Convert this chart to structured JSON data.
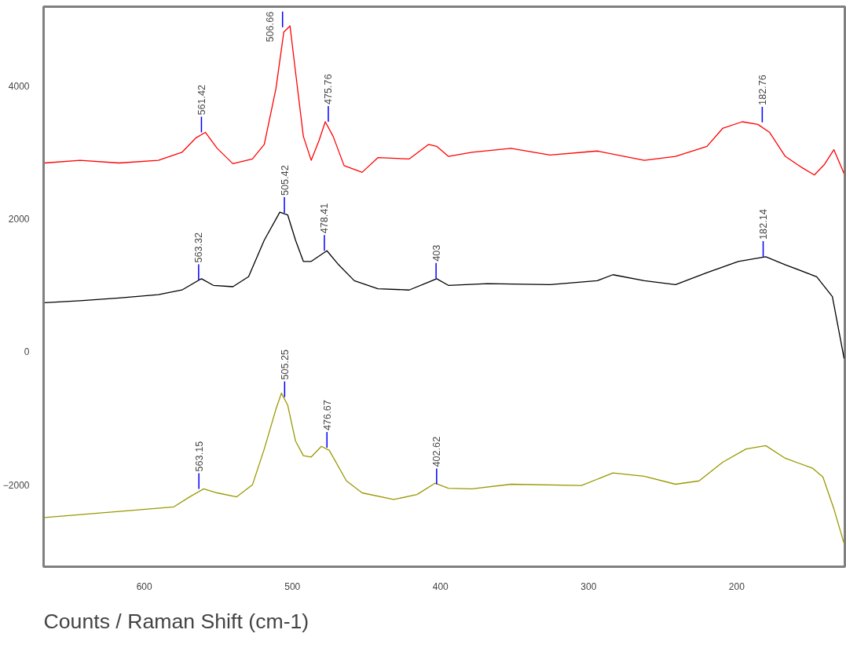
{
  "chart_data": {
    "type": "line",
    "xlabel": "Counts / Raman Shift (cm-1)",
    "xlim": [
      668,
      127
    ],
    "ylim": [
      -3230,
      5190
    ],
    "xticks": [
      600,
      500,
      400,
      300,
      200
    ],
    "yticks": [
      4000,
      2000,
      0,
      -2000
    ],
    "series": [
      {
        "color": "#ff0000",
        "x": [
          667.2,
          643.4,
          617,
          590.5,
          574.6,
          565,
          558.7,
          550.8,
          540.2,
          527,
          519,
          511.1,
          505.8,
          501.6,
          497.9,
          492.6,
          487.3,
          482,
          477.8,
          472.5,
          465.1,
          452.9,
          442.3,
          421.2,
          408,
          402.6,
          394.7,
          378.8,
          352.4,
          326,
          294.2,
          262.4,
          241.3,
          220.1,
          209.5,
          196.3,
          185.7,
          177.8,
          167.2,
          156.6,
          147.6,
          140.7,
          134.4,
          127.5
        ],
        "values": [
          2840,
          2880,
          2840,
          2880,
          3000,
          3220,
          3300,
          3060,
          2830,
          2900,
          3120,
          3960,
          4810,
          4900,
          4210,
          3240,
          2880,
          3180,
          3460,
          3240,
          2800,
          2700,
          2920,
          2900,
          3120,
          3090,
          2940,
          3000,
          3060,
          2960,
          3020,
          2880,
          2940,
          3090,
          3360,
          3460,
          3420,
          3300,
          2940,
          2780,
          2660,
          2820,
          3040,
          2680
        ]
      },
      {
        "color": "#000000",
        "x": [
          667.2,
          643.4,
          617,
          590.5,
          574.6,
          561.4,
          553.4,
          540.2,
          529.6,
          519,
          508.5,
          503.2,
          497.9,
          492.6,
          487.3,
          476.7,
          468.8,
          458.2,
          442.3,
          421.2,
          408,
          402.6,
          394.7,
          368.3,
          326,
          294.2,
          283.6,
          262.4,
          241.3,
          220.1,
          198.9,
          180.4,
          167.2,
          146,
          135.4,
          127.5
        ],
        "values": [
          740,
          770,
          810,
          860,
          930,
          1100,
          1000,
          980,
          1130,
          1680,
          2100,
          2060,
          1680,
          1360,
          1360,
          1520,
          1310,
          1070,
          950,
          930,
          1050,
          1100,
          1000,
          1025,
          1010,
          1070,
          1160,
          1070,
          1010,
          1190,
          1360,
          1430,
          1310,
          1130,
          830,
          -100
        ]
      },
      {
        "color": "#999900",
        "x": [
          667.2,
          617,
          580,
          569.4,
          559.9,
          550.8,
          537.6,
          527,
          519,
          511.1,
          507.4,
          503.2,
          497.9,
          492.6,
          487.3,
          480.4,
          475.1,
          463.5,
          452.9,
          431.7,
          415.9,
          403.7,
          394.7,
          378.8,
          352.4,
          304.8,
          283.6,
          262.4,
          241.3,
          225.4,
          209.5,
          193.7,
          180.4,
          167.2,
          148.7,
          141.8,
          134.4,
          127.5
        ],
        "values": [
          -2490,
          -2400,
          -2330,
          -2180,
          -2060,
          -2120,
          -2180,
          -2000,
          -1460,
          -860,
          -620,
          -800,
          -1340,
          -1560,
          -1580,
          -1420,
          -1480,
          -1940,
          -2120,
          -2220,
          -2145,
          -1975,
          -2050,
          -2060,
          -1990,
          -2010,
          -1820,
          -1870,
          -1990,
          -1940,
          -1660,
          -1460,
          -1410,
          -1600,
          -1750,
          -1880,
          -2360,
          -2880
        ]
      }
    ],
    "annotations": [
      {
        "text": "561.42",
        "x": 561.42,
        "y": 3300
      },
      {
        "text": "506.66",
        "x": 506.66,
        "y": 4880
      },
      {
        "text": "475.76",
        "x": 475.76,
        "y": 3460
      },
      {
        "text": "182.76",
        "x": 182.76,
        "y": 3450
      },
      {
        "text": "563.32",
        "x": 563.32,
        "y": 1080
      },
      {
        "text": "505.42",
        "x": 505.42,
        "y": 2090
      },
      {
        "text": "478.41",
        "x": 478.41,
        "y": 1520
      },
      {
        "text": "403",
        "x": 403,
        "y": 1100
      },
      {
        "text": "182.14",
        "x": 182.14,
        "y": 1430
      },
      {
        "text": "563.15",
        "x": 563.15,
        "y": -2060
      },
      {
        "text": "505.25",
        "x": 505.25,
        "y": -680
      },
      {
        "text": "476.67",
        "x": 476.67,
        "y": -1440
      },
      {
        "text": "402.62",
        "x": 402.62,
        "y": -1990
      }
    ]
  }
}
